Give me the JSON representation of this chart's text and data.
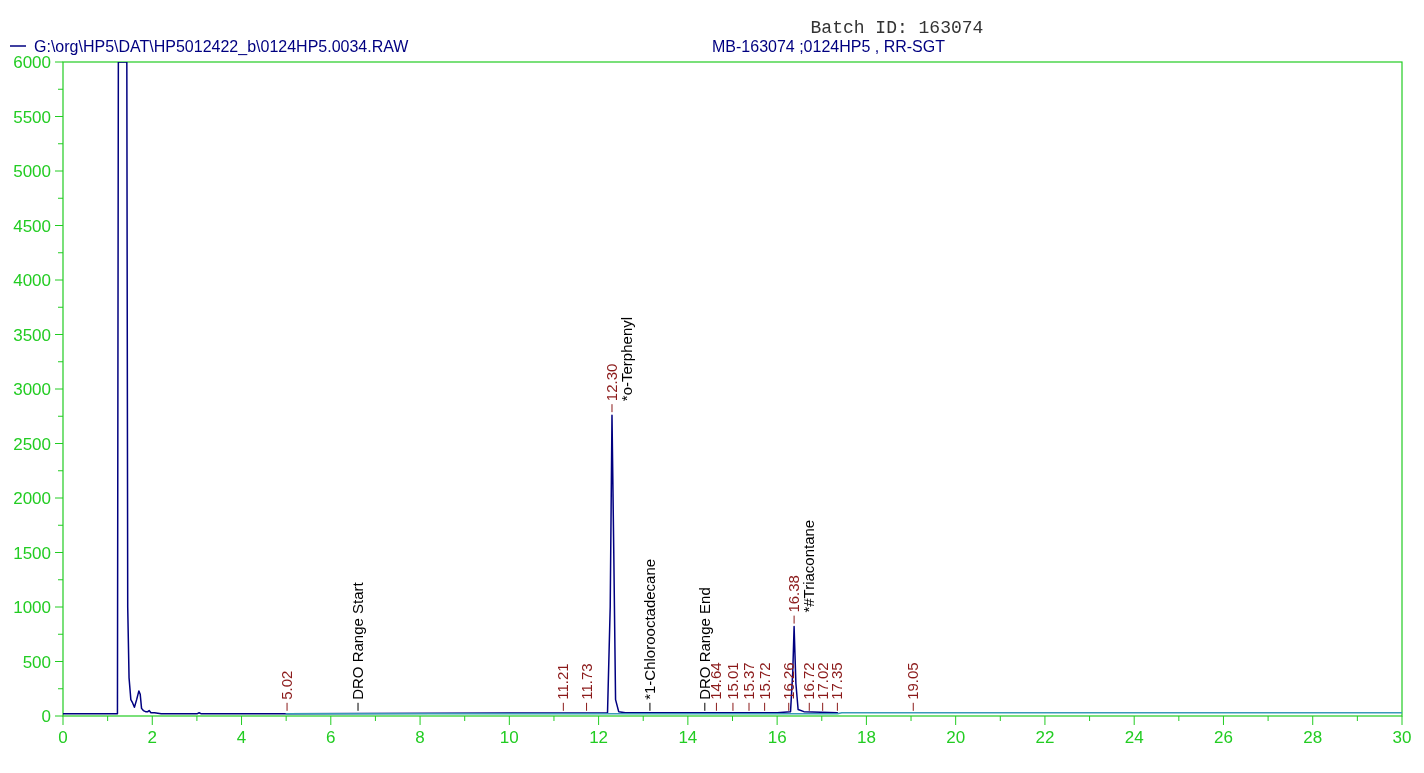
{
  "chart_data": {
    "type": "line",
    "title": "MB-163074 ;0124HP5 ,  RR-SGT",
    "subtitle": "Batch ID: 163074",
    "xlim": [
      0,
      30
    ],
    "ylim": [
      0,
      6000
    ],
    "xticks": [
      0,
      {
        "value": 1,
        "label": null
      },
      2,
      {
        "value": 3,
        "label": null
      },
      4,
      {
        "value": 5,
        "label": null
      },
      6,
      {
        "value": 7,
        "label": null
      },
      8,
      {
        "value": 9,
        "label": null
      },
      10,
      {
        "value": 11,
        "label": null
      },
      12,
      {
        "value": 13,
        "label": null
      },
      14,
      {
        "value": 15,
        "label": null
      },
      16,
      {
        "value": 17,
        "label": null
      },
      18,
      {
        "value": 19,
        "label": null
      },
      20,
      {
        "value": 21,
        "label": null
      },
      22,
      {
        "value": 23,
        "label": null
      },
      24,
      {
        "value": 25,
        "label": null
      },
      26,
      {
        "value": 27,
        "label": null
      },
      28,
      {
        "value": 29,
        "label": null
      },
      30
    ],
    "yticks": [
      0,
      {
        "value": 250,
        "label": null
      },
      500,
      {
        "value": 750,
        "label": null
      },
      1000,
      {
        "value": 1250,
        "label": null
      },
      1500,
      {
        "value": 1750,
        "label": null
      },
      2000,
      {
        "value": 2250,
        "label": null
      },
      2500,
      {
        "value": 2750,
        "label": null
      },
      3000,
      {
        "value": 3250,
        "label": null
      },
      3500,
      {
        "value": 3750,
        "label": null
      },
      4000,
      {
        "value": 4250,
        "label": null
      },
      4500,
      {
        "value": 4750,
        "label": null
      },
      5000,
      {
        "value": 5250,
        "label": null
      },
      5500,
      {
        "value": 5750,
        "label": null
      },
      6000
    ],
    "grid": false,
    "legend": "top left",
    "series": [
      {
        "name": "G:\\org\\HP5\\DAT\\HP5012422_b\\0124HP5.0034.RAW",
        "color": "#000080",
        "x": [
          0,
          1.0,
          1.22,
          1.24,
          1.43,
          1.45,
          1.48,
          1.52,
          1.56,
          1.6,
          1.65,
          1.7,
          1.73,
          1.76,
          1.8,
          1.85,
          1.9,
          1.93,
          1.97,
          2.05,
          2.2,
          3.0,
          3.05,
          3.1,
          5.0,
          12.2,
          12.26,
          12.3,
          12.34,
          12.38,
          12.45,
          12.6,
          16.0,
          16.3,
          16.35,
          16.38,
          16.42,
          16.47,
          16.6,
          17.35
        ],
        "values": [
          20,
          20,
          20,
          6000,
          6000,
          1000,
          350,
          150,
          120,
          80,
          150,
          230,
          200,
          70,
          50,
          40,
          40,
          50,
          30,
          30,
          20,
          20,
          30,
          20,
          20,
          30,
          1000,
          2760,
          1500,
          150,
          40,
          30,
          30,
          40,
          400,
          820,
          300,
          60,
          40,
          30
        ]
      },
      {
        "color": "#3a9ab8",
        "x": [
          5.0,
          17.35,
          17.45,
          30
        ],
        "values": [
          20,
          20,
          30,
          30
        ]
      }
    ],
    "annotations": [
      {
        "text": "5.02",
        "x": 5.02,
        "y": 20
      },
      {
        "text": "DRO Range Start",
        "x": 6.61,
        "y": 20
      },
      {
        "text": "11.21",
        "x": 11.21,
        "y": 20
      },
      {
        "text": "11.73",
        "x": 11.73,
        "y": 20
      },
      {
        "text": "12.30",
        "x": 12.3,
        "y": 2760
      },
      {
        "text": "*o-Terphenyl",
        "x": 12.3,
        "y": 2760
      },
      {
        "text": "*1-Chlorooctadecane",
        "x": 13.15,
        "y": 20
      },
      {
        "text": "DRO Range End",
        "x": 14.38,
        "y": 20
      },
      {
        "text": "14.64",
        "x": 14.64,
        "y": 20
      },
      {
        "text": "15.01",
        "x": 15.01,
        "y": 20
      },
      {
        "text": "15.37",
        "x": 15.37,
        "y": 20
      },
      {
        "text": "15.72",
        "x": 15.72,
        "y": 20
      },
      {
        "text": "16.26",
        "x": 16.26,
        "y": 20
      },
      {
        "text": "16.38",
        "x": 16.38,
        "y": 820
      },
      {
        "text": "*#Triacontane",
        "x": 16.38,
        "y": 820
      },
      {
        "text": "16.72",
        "x": 16.72,
        "y": 20
      },
      {
        "text": "17.02",
        "x": 17.02,
        "y": 20
      },
      {
        "text": "17.35",
        "x": 17.35,
        "y": 20
      },
      {
        "text": "19.05",
        "x": 19.05,
        "y": 20
      }
    ]
  }
}
